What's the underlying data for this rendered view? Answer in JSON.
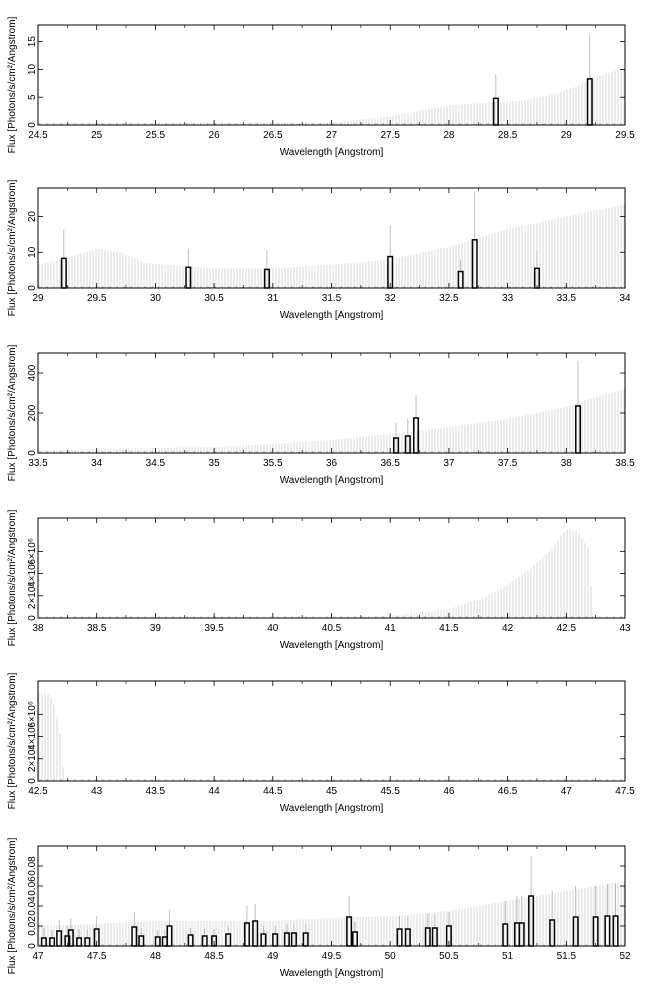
{
  "chart_data": [
    {
      "type": "bar",
      "xlabel": "Wavelength [Angstrom]",
      "ylabel": "Flux [Photons/s/cm²/Angstrom]",
      "xlim": [
        24.5,
        29.5
      ],
      "ylim": [
        0,
        18
      ],
      "x_ticks": [
        "24.5",
        "25",
        "25.5",
        "26",
        "26.5",
        "27",
        "27.5",
        "28",
        "28.5",
        "29",
        "29.5"
      ],
      "y_ticks": [
        "0",
        "5",
        "10",
        "15"
      ],
      "bars": [
        {
          "x": 28.4,
          "y": 4.8,
          "err": 9.2
        },
        {
          "x": 29.2,
          "y": 8.3,
          "err": 16.3
        }
      ],
      "error_envelope": [
        [
          24.5,
          0.3
        ],
        [
          27.0,
          0.5
        ],
        [
          27.5,
          1.5
        ],
        [
          27.8,
          2.8
        ],
        [
          28.0,
          3.5
        ],
        [
          28.3,
          4.0
        ],
        [
          28.6,
          4.3
        ],
        [
          28.9,
          5.5
        ],
        [
          29.1,
          7.0
        ],
        [
          29.3,
          9.0
        ],
        [
          29.5,
          10.2
        ]
      ]
    },
    {
      "type": "bar",
      "xlabel": "Wavelength [Angstrom]",
      "ylabel": "Flux [Photons/s/cm²/Angstrom]",
      "xlim": [
        29,
        34
      ],
      "ylim": [
        0,
        28
      ],
      "x_ticks": [
        "29",
        "29.5",
        "30",
        "30.5",
        "31",
        "31.5",
        "32",
        "32.5",
        "33",
        "33.5",
        "34"
      ],
      "y_ticks": [
        "0",
        "10",
        "20"
      ],
      "bars": [
        {
          "x": 29.22,
          "y": 8.3,
          "err": 16.3
        },
        {
          "x": 30.28,
          "y": 5.8,
          "err": 11.0
        },
        {
          "x": 30.95,
          "y": 5.2,
          "err": 10.5
        },
        {
          "x": 32.0,
          "y": 8.8,
          "err": 17.5
        },
        {
          "x": 32.6,
          "y": 4.6,
          "err": 8.0
        },
        {
          "x": 32.72,
          "y": 13.5,
          "err": 27.0
        },
        {
          "x": 33.25,
          "y": 5.5,
          "err": 10.5
        }
      ],
      "error_envelope": [
        [
          29.0,
          6.5
        ],
        [
          29.2,
          8.0
        ],
        [
          29.5,
          11.0
        ],
        [
          29.7,
          10.0
        ],
        [
          29.9,
          7.0
        ],
        [
          30.5,
          5.5
        ],
        [
          31.0,
          5.5
        ],
        [
          31.5,
          6.5
        ],
        [
          32.0,
          8.0
        ],
        [
          32.5,
          11.5
        ],
        [
          33.0,
          16.5
        ],
        [
          33.5,
          20.0
        ],
        [
          34.0,
          23.5
        ]
      ]
    },
    {
      "type": "bar",
      "xlabel": "Wavelength [Angstrom]",
      "ylabel": "Flux [Photons/s/cm²/Angstrom]",
      "xlim": [
        33.5,
        38.5
      ],
      "ylim": [
        0,
        500
      ],
      "x_ticks": [
        "33.5",
        "34",
        "34.5",
        "35",
        "35.5",
        "36",
        "36.5",
        "37",
        "37.5",
        "38",
        "38.5"
      ],
      "y_ticks": [
        "0",
        "200",
        "400"
      ],
      "bars": [
        {
          "x": 36.55,
          "y": 75,
          "err": 150
        },
        {
          "x": 36.65,
          "y": 85,
          "err": 170
        },
        {
          "x": 36.72,
          "y": 175,
          "err": 290
        },
        {
          "x": 38.1,
          "y": 235,
          "err": 460
        }
      ],
      "error_envelope": [
        [
          33.5,
          15
        ],
        [
          34.5,
          25
        ],
        [
          35.0,
          30
        ],
        [
          35.5,
          45
        ],
        [
          36.0,
          65
        ],
        [
          36.5,
          95
        ],
        [
          37.0,
          130
        ],
        [
          37.5,
          170
        ],
        [
          38.0,
          230
        ],
        [
          38.3,
          290
        ],
        [
          38.5,
          320
        ]
      ]
    },
    {
      "type": "area",
      "xlabel": "Wavelength [Angstrom]",
      "ylabel": "Flux [Photons/s/cm²/Angstrom]",
      "xlim": [
        38,
        43
      ],
      "ylim": [
        0,
        9000000
      ],
      "x_ticks": [
        "38",
        "38.5",
        "39",
        "39.5",
        "40",
        "40.5",
        "41",
        "41.5",
        "42",
        "42.5",
        "43"
      ],
      "y_ticks": [
        "0",
        "2×10⁶",
        "4×10⁶",
        "6×10⁶"
      ],
      "error_envelope": [
        [
          38.0,
          0
        ],
        [
          40.5,
          0
        ],
        [
          41.0,
          200000
        ],
        [
          41.5,
          800000
        ],
        [
          41.8,
          1800000
        ],
        [
          42.0,
          3000000
        ],
        [
          42.2,
          4500000
        ],
        [
          42.4,
          6500000
        ],
        [
          42.5,
          8000000
        ],
        [
          42.6,
          7800000
        ],
        [
          42.7,
          6000000
        ],
        [
          42.72,
          0
        ],
        [
          43.0,
          0
        ]
      ]
    },
    {
      "type": "area",
      "xlabel": "Wavelength [Angstrom]",
      "ylabel": "Flux [Photons/s/cm²/Angstrom]",
      "xlim": [
        42.5,
        47.5
      ],
      "ylim": [
        0,
        9000000
      ],
      "x_ticks": [
        "42.5",
        "43",
        "43.5",
        "44",
        "44.5",
        "45",
        "45.5",
        "46",
        "46.5",
        "47",
        "47.5"
      ],
      "y_ticks": [
        "0",
        "2×10⁶",
        "4×10⁶",
        "6×10⁶"
      ],
      "error_envelope": [
        [
          42.5,
          8000000
        ],
        [
          42.6,
          7800000
        ],
        [
          42.65,
          6500000
        ],
        [
          42.7,
          3500000
        ],
        [
          42.72,
          0
        ],
        [
          47.5,
          0
        ]
      ]
    },
    {
      "type": "bar",
      "xlabel": "Wavelength [Angstrom]",
      "ylabel": "Flux [Photons/s/cm²/Angstrom]",
      "xlim": [
        47,
        52
      ],
      "ylim": [
        0,
        0.1
      ],
      "x_ticks": [
        "47",
        "47.5",
        "48",
        "48.5",
        "49",
        "49.5",
        "50",
        "50.5",
        "51",
        "51.5",
        "52"
      ],
      "y_ticks": [
        "0",
        "0.02",
        "0.04",
        "0.06",
        "0.08"
      ],
      "bars": [
        {
          "x": 47.05,
          "y": 0.008,
          "err": 0.018
        },
        {
          "x": 47.12,
          "y": 0.008,
          "err": 0.016
        },
        {
          "x": 47.18,
          "y": 0.015,
          "err": 0.026
        },
        {
          "x": 47.25,
          "y": 0.01,
          "err": 0.02
        },
        {
          "x": 47.28,
          "y": 0.016,
          "err": 0.028
        },
        {
          "x": 47.35,
          "y": 0.008,
          "err": 0.017
        },
        {
          "x": 47.42,
          "y": 0.008,
          "err": 0.017
        },
        {
          "x": 47.5,
          "y": 0.017,
          "err": 0.03
        },
        {
          "x": 47.82,
          "y": 0.019,
          "err": 0.034
        },
        {
          "x": 47.88,
          "y": 0.01,
          "err": 0.018
        },
        {
          "x": 48.02,
          "y": 0.009,
          "err": 0.016
        },
        {
          "x": 48.08,
          "y": 0.009,
          "err": 0.016
        },
        {
          "x": 48.12,
          "y": 0.02,
          "err": 0.036
        },
        {
          "x": 48.3,
          "y": 0.011,
          "err": 0.018
        },
        {
          "x": 48.42,
          "y": 0.01,
          "err": 0.017
        },
        {
          "x": 48.5,
          "y": 0.01,
          "err": 0.017
        },
        {
          "x": 48.62,
          "y": 0.012,
          "err": 0.02
        },
        {
          "x": 48.78,
          "y": 0.023,
          "err": 0.04
        },
        {
          "x": 48.85,
          "y": 0.025,
          "err": 0.042
        },
        {
          "x": 48.92,
          "y": 0.012,
          "err": 0.02
        },
        {
          "x": 49.02,
          "y": 0.012,
          "err": 0.02
        },
        {
          "x": 49.12,
          "y": 0.013,
          "err": 0.022
        },
        {
          "x": 49.18,
          "y": 0.013,
          "err": 0.022
        },
        {
          "x": 49.28,
          "y": 0.013,
          "err": 0.022
        },
        {
          "x": 49.65,
          "y": 0.029,
          "err": 0.05
        },
        {
          "x": 49.7,
          "y": 0.014,
          "err": 0.024
        },
        {
          "x": 50.08,
          "y": 0.017,
          "err": 0.03
        },
        {
          "x": 50.15,
          "y": 0.017,
          "err": 0.03
        },
        {
          "x": 50.32,
          "y": 0.018,
          "err": 0.032
        },
        {
          "x": 50.38,
          "y": 0.018,
          "err": 0.032
        },
        {
          "x": 50.5,
          "y": 0.02,
          "err": 0.034
        },
        {
          "x": 50.98,
          "y": 0.022,
          "err": 0.045
        },
        {
          "x": 51.08,
          "y": 0.023,
          "err": 0.05
        },
        {
          "x": 51.12,
          "y": 0.023,
          "err": 0.05
        },
        {
          "x": 51.2,
          "y": 0.05,
          "err": 0.09
        },
        {
          "x": 51.38,
          "y": 0.026,
          "err": 0.055
        },
        {
          "x": 51.58,
          "y": 0.029,
          "err": 0.06
        },
        {
          "x": 51.75,
          "y": 0.029,
          "err": 0.06
        },
        {
          "x": 51.85,
          "y": 0.03,
          "err": 0.062
        },
        {
          "x": 51.92,
          "y": 0.03,
          "err": 0.062
        }
      ],
      "error_envelope": [
        [
          47.0,
          0.02
        ],
        [
          47.5,
          0.022
        ],
        [
          48.0,
          0.025
        ],
        [
          48.5,
          0.025
        ],
        [
          49.0,
          0.025
        ],
        [
          49.5,
          0.028
        ],
        [
          50.0,
          0.03
        ],
        [
          50.5,
          0.035
        ],
        [
          51.0,
          0.045
        ],
        [
          51.5,
          0.055
        ],
        [
          52.0,
          0.065
        ]
      ]
    }
  ]
}
